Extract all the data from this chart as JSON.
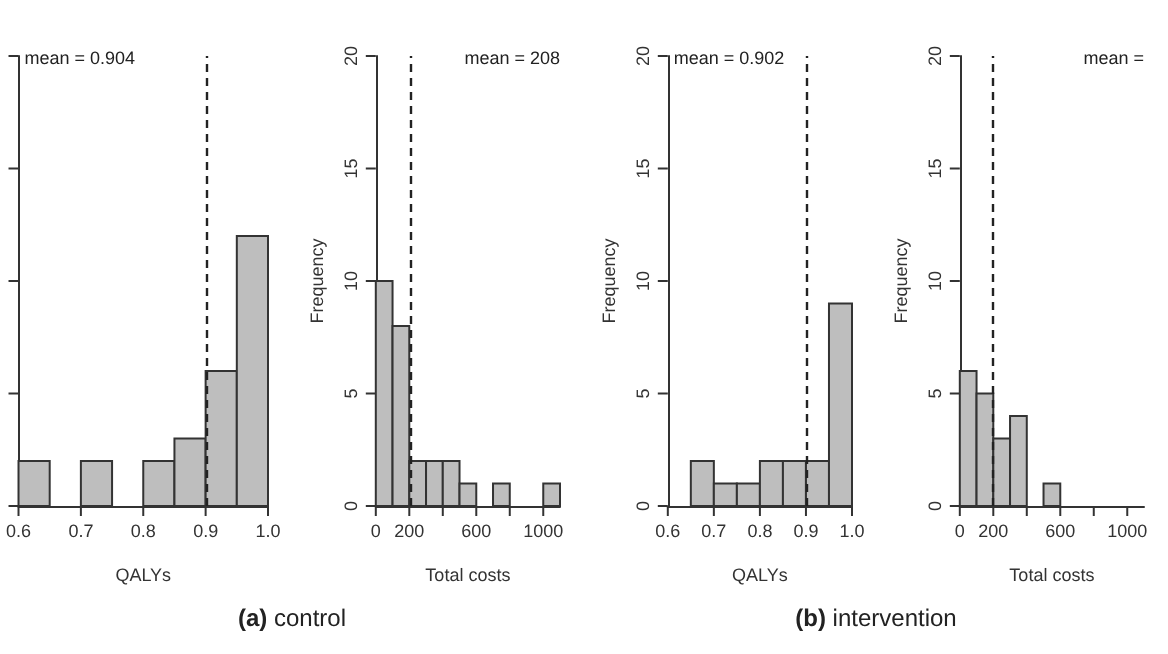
{
  "chart_data": [
    {
      "type": "histogram",
      "xlabel": "QALYs",
      "bins": [
        0.6,
        0.65,
        0.7,
        0.75,
        0.8,
        0.85,
        0.9,
        0.95,
        1.0
      ],
      "values": [
        2,
        0,
        2,
        0,
        2,
        3,
        6,
        12
      ],
      "color": "#bebebe",
      "xlim": [
        0.6,
        1.0
      ],
      "xticks": [
        0.6,
        0.7,
        0.8,
        0.9,
        {
          "value": 1.0,
          "label": "1.0"
        }
      ],
      "ylim": [
        0,
        20
      ],
      "yticks": [
        0,
        5,
        10,
        15,
        20
      ],
      "tick_labels": "x",
      "grid": false,
      "ref_lines": [
        {
          "axis": "x",
          "value": 0.904,
          "label": "mean = 0.904",
          "line_style": "dashed"
        }
      ]
    },
    {
      "type": "histogram",
      "xlabel": "Total costs",
      "ylabel": "Frequency",
      "bins": [
        0,
        100,
        200,
        300,
        400,
        500,
        600,
        700,
        800,
        900,
        1000,
        1100
      ],
      "values": [
        10,
        8,
        2,
        2,
        2,
        1,
        0,
        1,
        0,
        0,
        1
      ],
      "color": "#bebebe",
      "xlim": [
        0,
        1100
      ],
      "xticks": [
        0,
        200,
        {
          "value": 400,
          "label": null
        },
        600,
        {
          "value": 800,
          "label": null
        },
        1000
      ],
      "ylim": [
        0,
        20
      ],
      "yticks": [
        0,
        5,
        10,
        15,
        20
      ],
      "grid": false,
      "ref_lines": [
        {
          "axis": "x",
          "value": 208,
          "label": "mean = 208",
          "line_style": "dashed"
        }
      ],
      "annotations": [
        "(a) control"
      ]
    },
    {
      "type": "histogram",
      "xlabel": "QALYs",
      "ylabel": "Frequency",
      "bins": [
        0.65,
        0.7,
        0.75,
        0.8,
        0.85,
        0.9,
        0.95,
        1.0
      ],
      "values": [
        2,
        1,
        1,
        2,
        2,
        2,
        9
      ],
      "color": "#bebebe",
      "xlim": [
        0.6,
        1.0
      ],
      "xticks": [
        0.6,
        0.7,
        0.8,
        0.9,
        {
          "value": 1.0,
          "label": "1.0"
        }
      ],
      "ylim": [
        0,
        20
      ],
      "yticks": [
        0,
        5,
        10,
        15,
        20
      ],
      "grid": false,
      "ref_lines": [
        {
          "axis": "x",
          "value": 0.902,
          "label": "mean = 0.902",
          "line_style": "dashed"
        }
      ]
    },
    {
      "type": "histogram",
      "xlabel": "Total costs",
      "ylabel": "Frequency",
      "bins": [
        0,
        100,
        200,
        300,
        400,
        500,
        600
      ],
      "values": [
        6,
        5,
        3,
        4,
        0,
        1
      ],
      "color": "#bebebe",
      "xlim": [
        0,
        1100
      ],
      "xticks": [
        0,
        200,
        {
          "value": 400,
          "label": null
        },
        600,
        {
          "value": 800,
          "label": null
        },
        1000
      ],
      "ylim": [
        0,
        20
      ],
      "yticks": [
        0,
        5,
        10,
        15,
        20
      ],
      "grid": false,
      "ref_lines": [
        {
          "axis": "x",
          "value": 195,
          "label": "mean =",
          "line_style": "dashed"
        }
      ],
      "annotations": [
        "(b) intervention"
      ]
    }
  ]
}
